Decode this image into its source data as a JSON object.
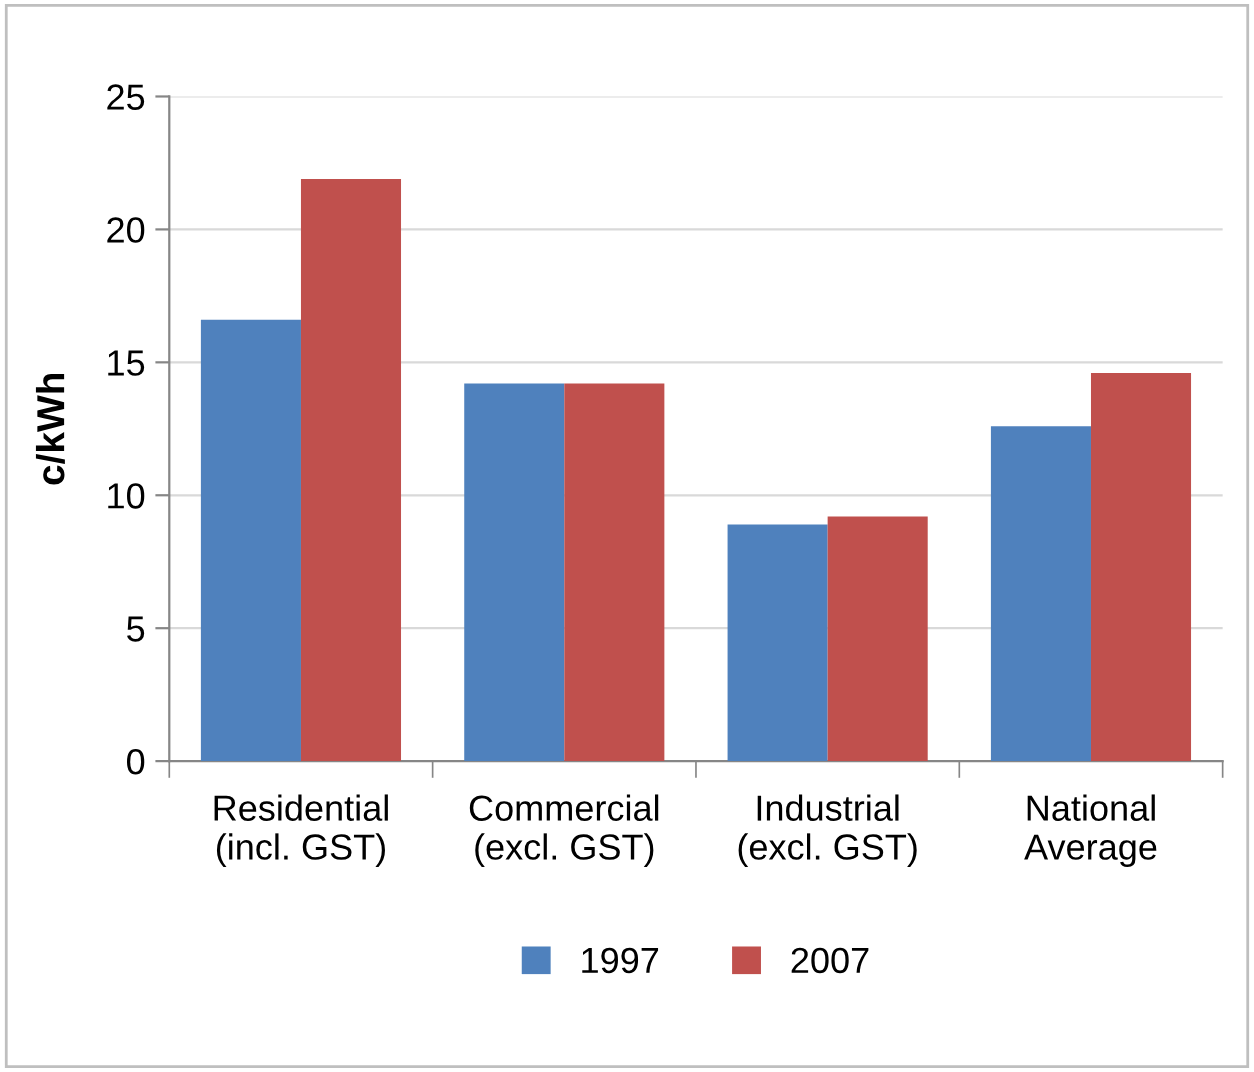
{
  "chart_data": {
    "type": "bar",
    "ylabel": "c/kWh",
    "categories": [
      "Residential\n(incl. GST)",
      "Commercial\n(excl. GST)",
      "Industrial\n(excl. GST)",
      "National\nAverage"
    ],
    "series": [
      {
        "name": "1997",
        "color": "#4f81bd",
        "values": [
          16.6,
          14.2,
          8.9,
          12.6
        ]
      },
      {
        "name": "2007",
        "color": "#c0504d",
        "values": [
          21.9,
          14.2,
          9.2,
          14.6
        ]
      }
    ],
    "ylim": [
      0,
      25
    ],
    "yticks": [
      0,
      5,
      10,
      15,
      20,
      25
    ],
    "grid": "y",
    "legend": "bottom"
  }
}
